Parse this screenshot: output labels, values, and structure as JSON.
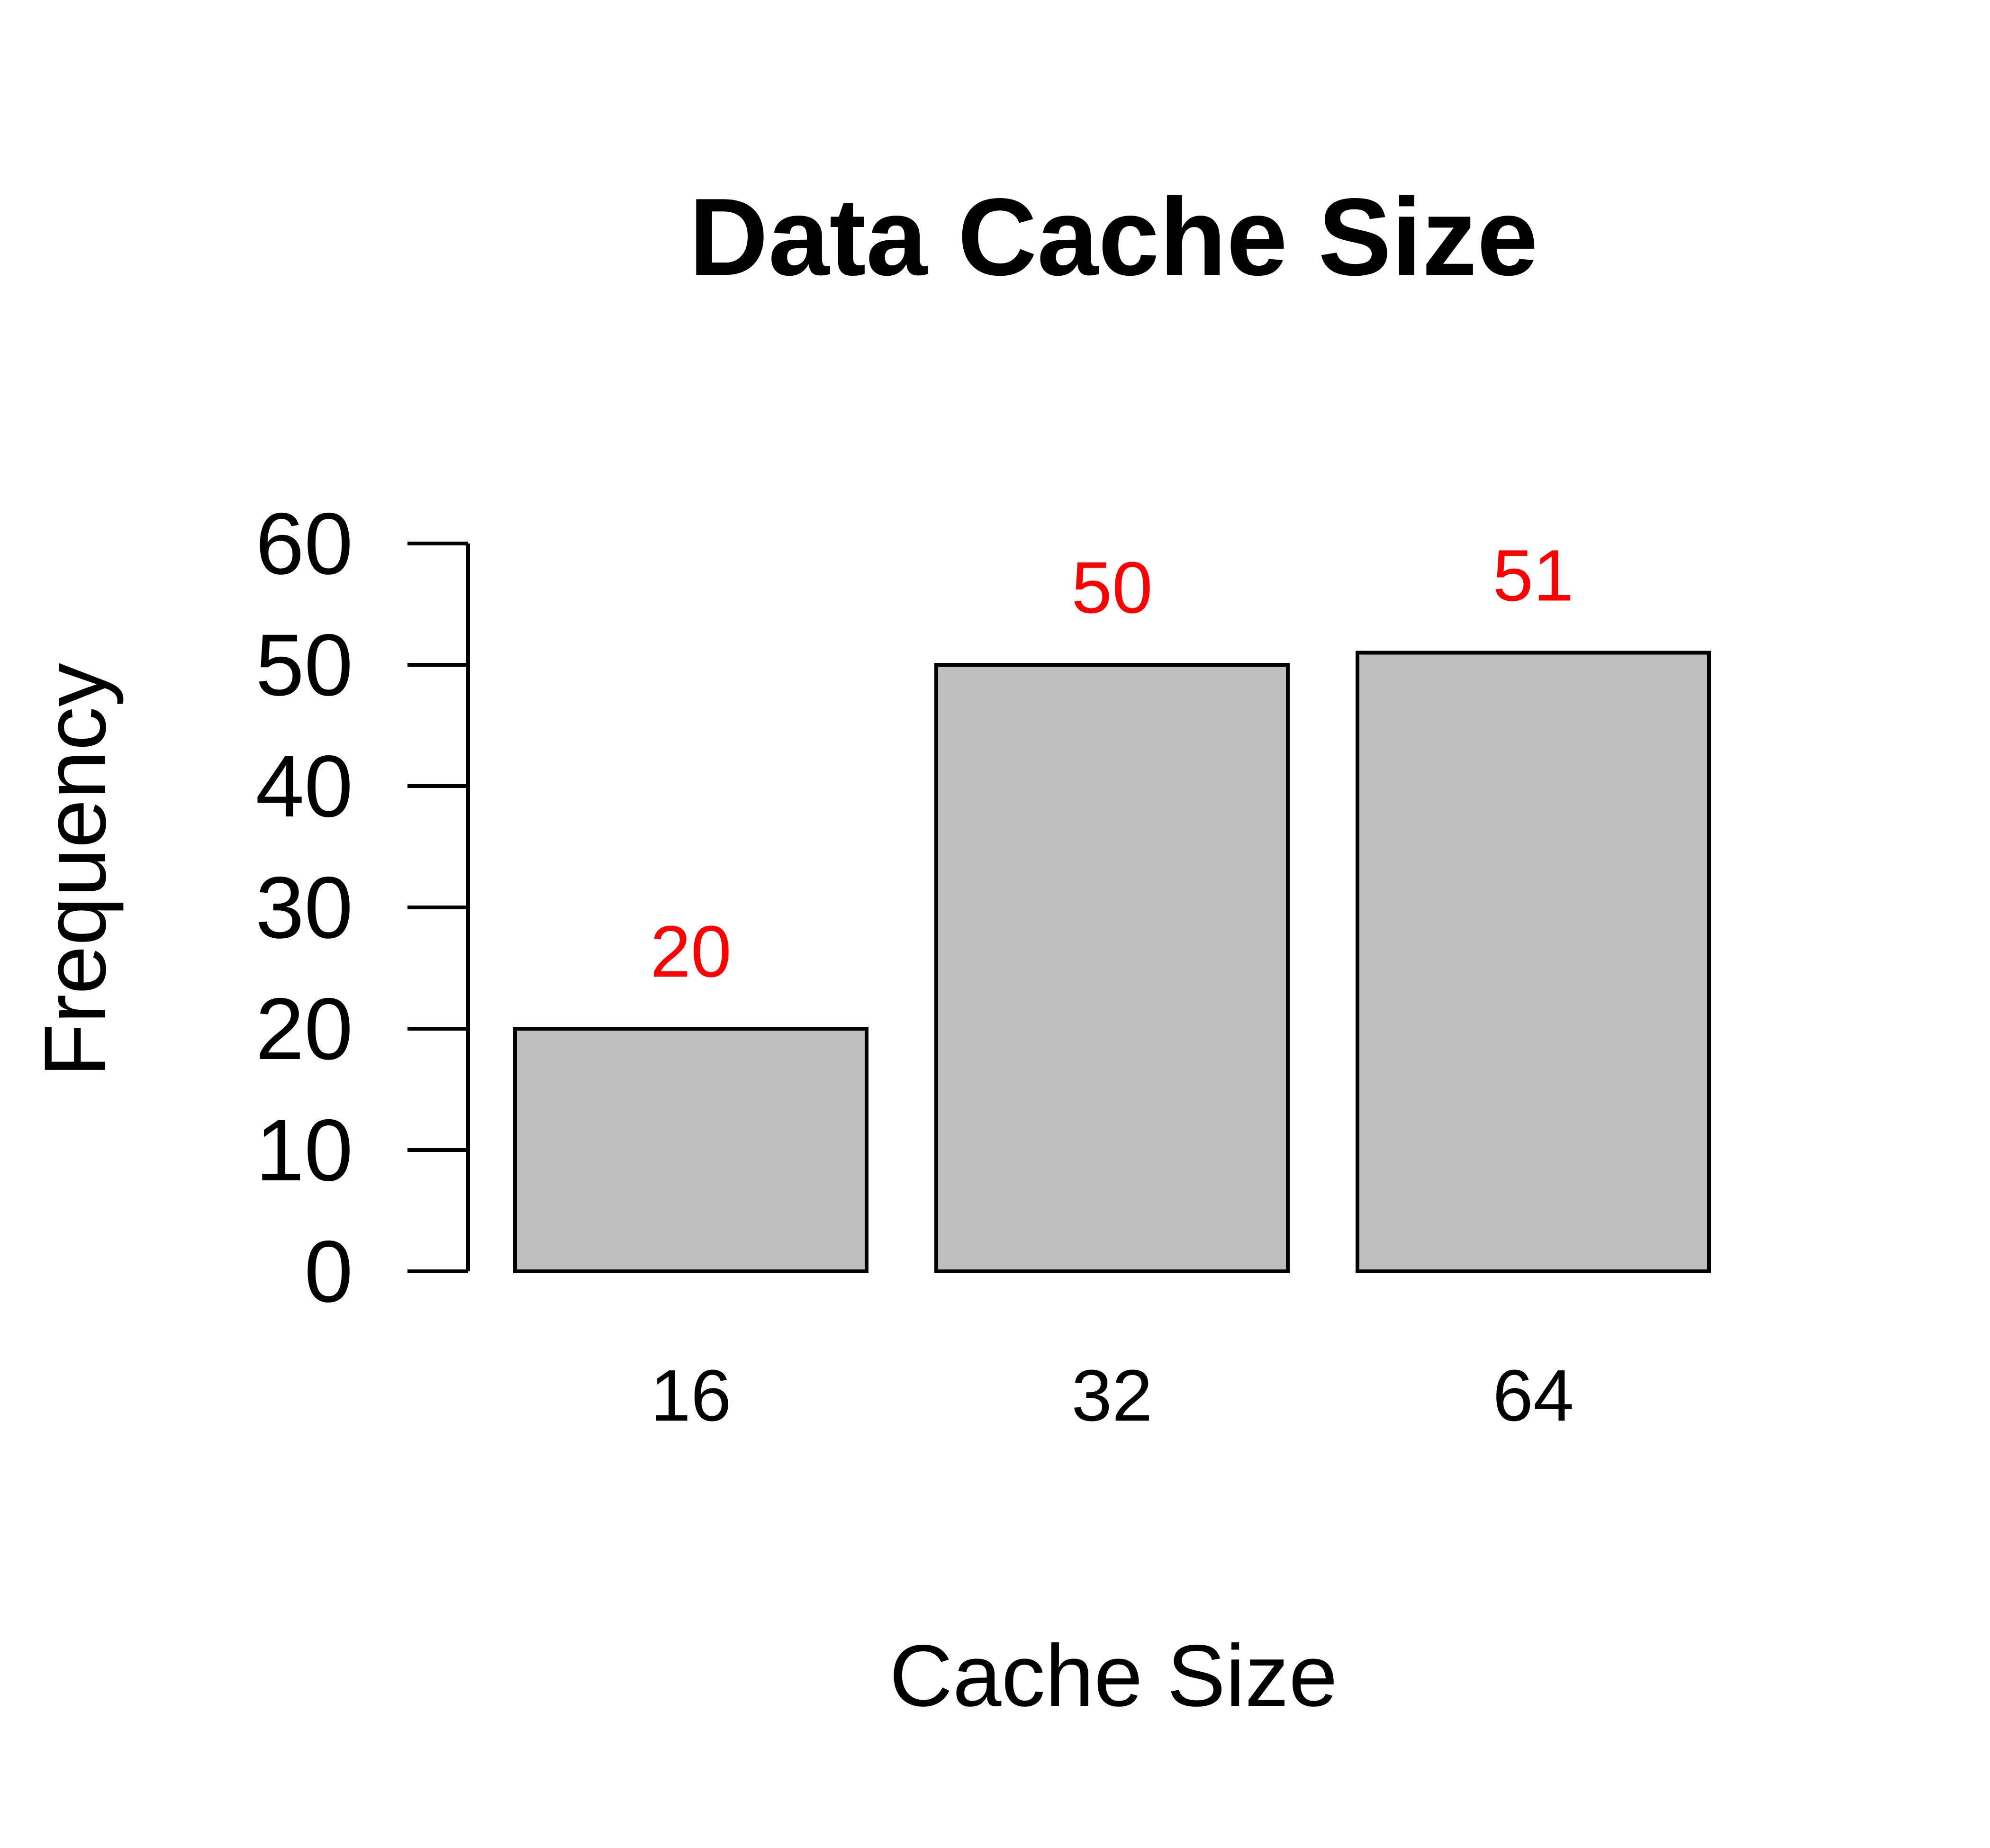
{
  "chart_data": {
    "type": "bar",
    "title": "Data Cache Size",
    "xlabel": "Cache Size",
    "ylabel": "Frequency",
    "categories": [
      "16",
      "32",
      "64"
    ],
    "values": [
      20,
      50,
      51
    ],
    "data_labels": [
      "20",
      "50",
      "51"
    ],
    "yticks": [
      0,
      10,
      20,
      30,
      40,
      50,
      60
    ],
    "ytick_labels": [
      "0",
      "10",
      "20",
      "30",
      "40",
      "50",
      "60"
    ],
    "ylim": [
      0,
      60
    ],
    "grid": false,
    "legend": "none",
    "colors": {
      "bar_fill": "#bebebe",
      "bar_stroke": "#000000",
      "data_label": "#ff0000",
      "text": "#000000"
    }
  }
}
